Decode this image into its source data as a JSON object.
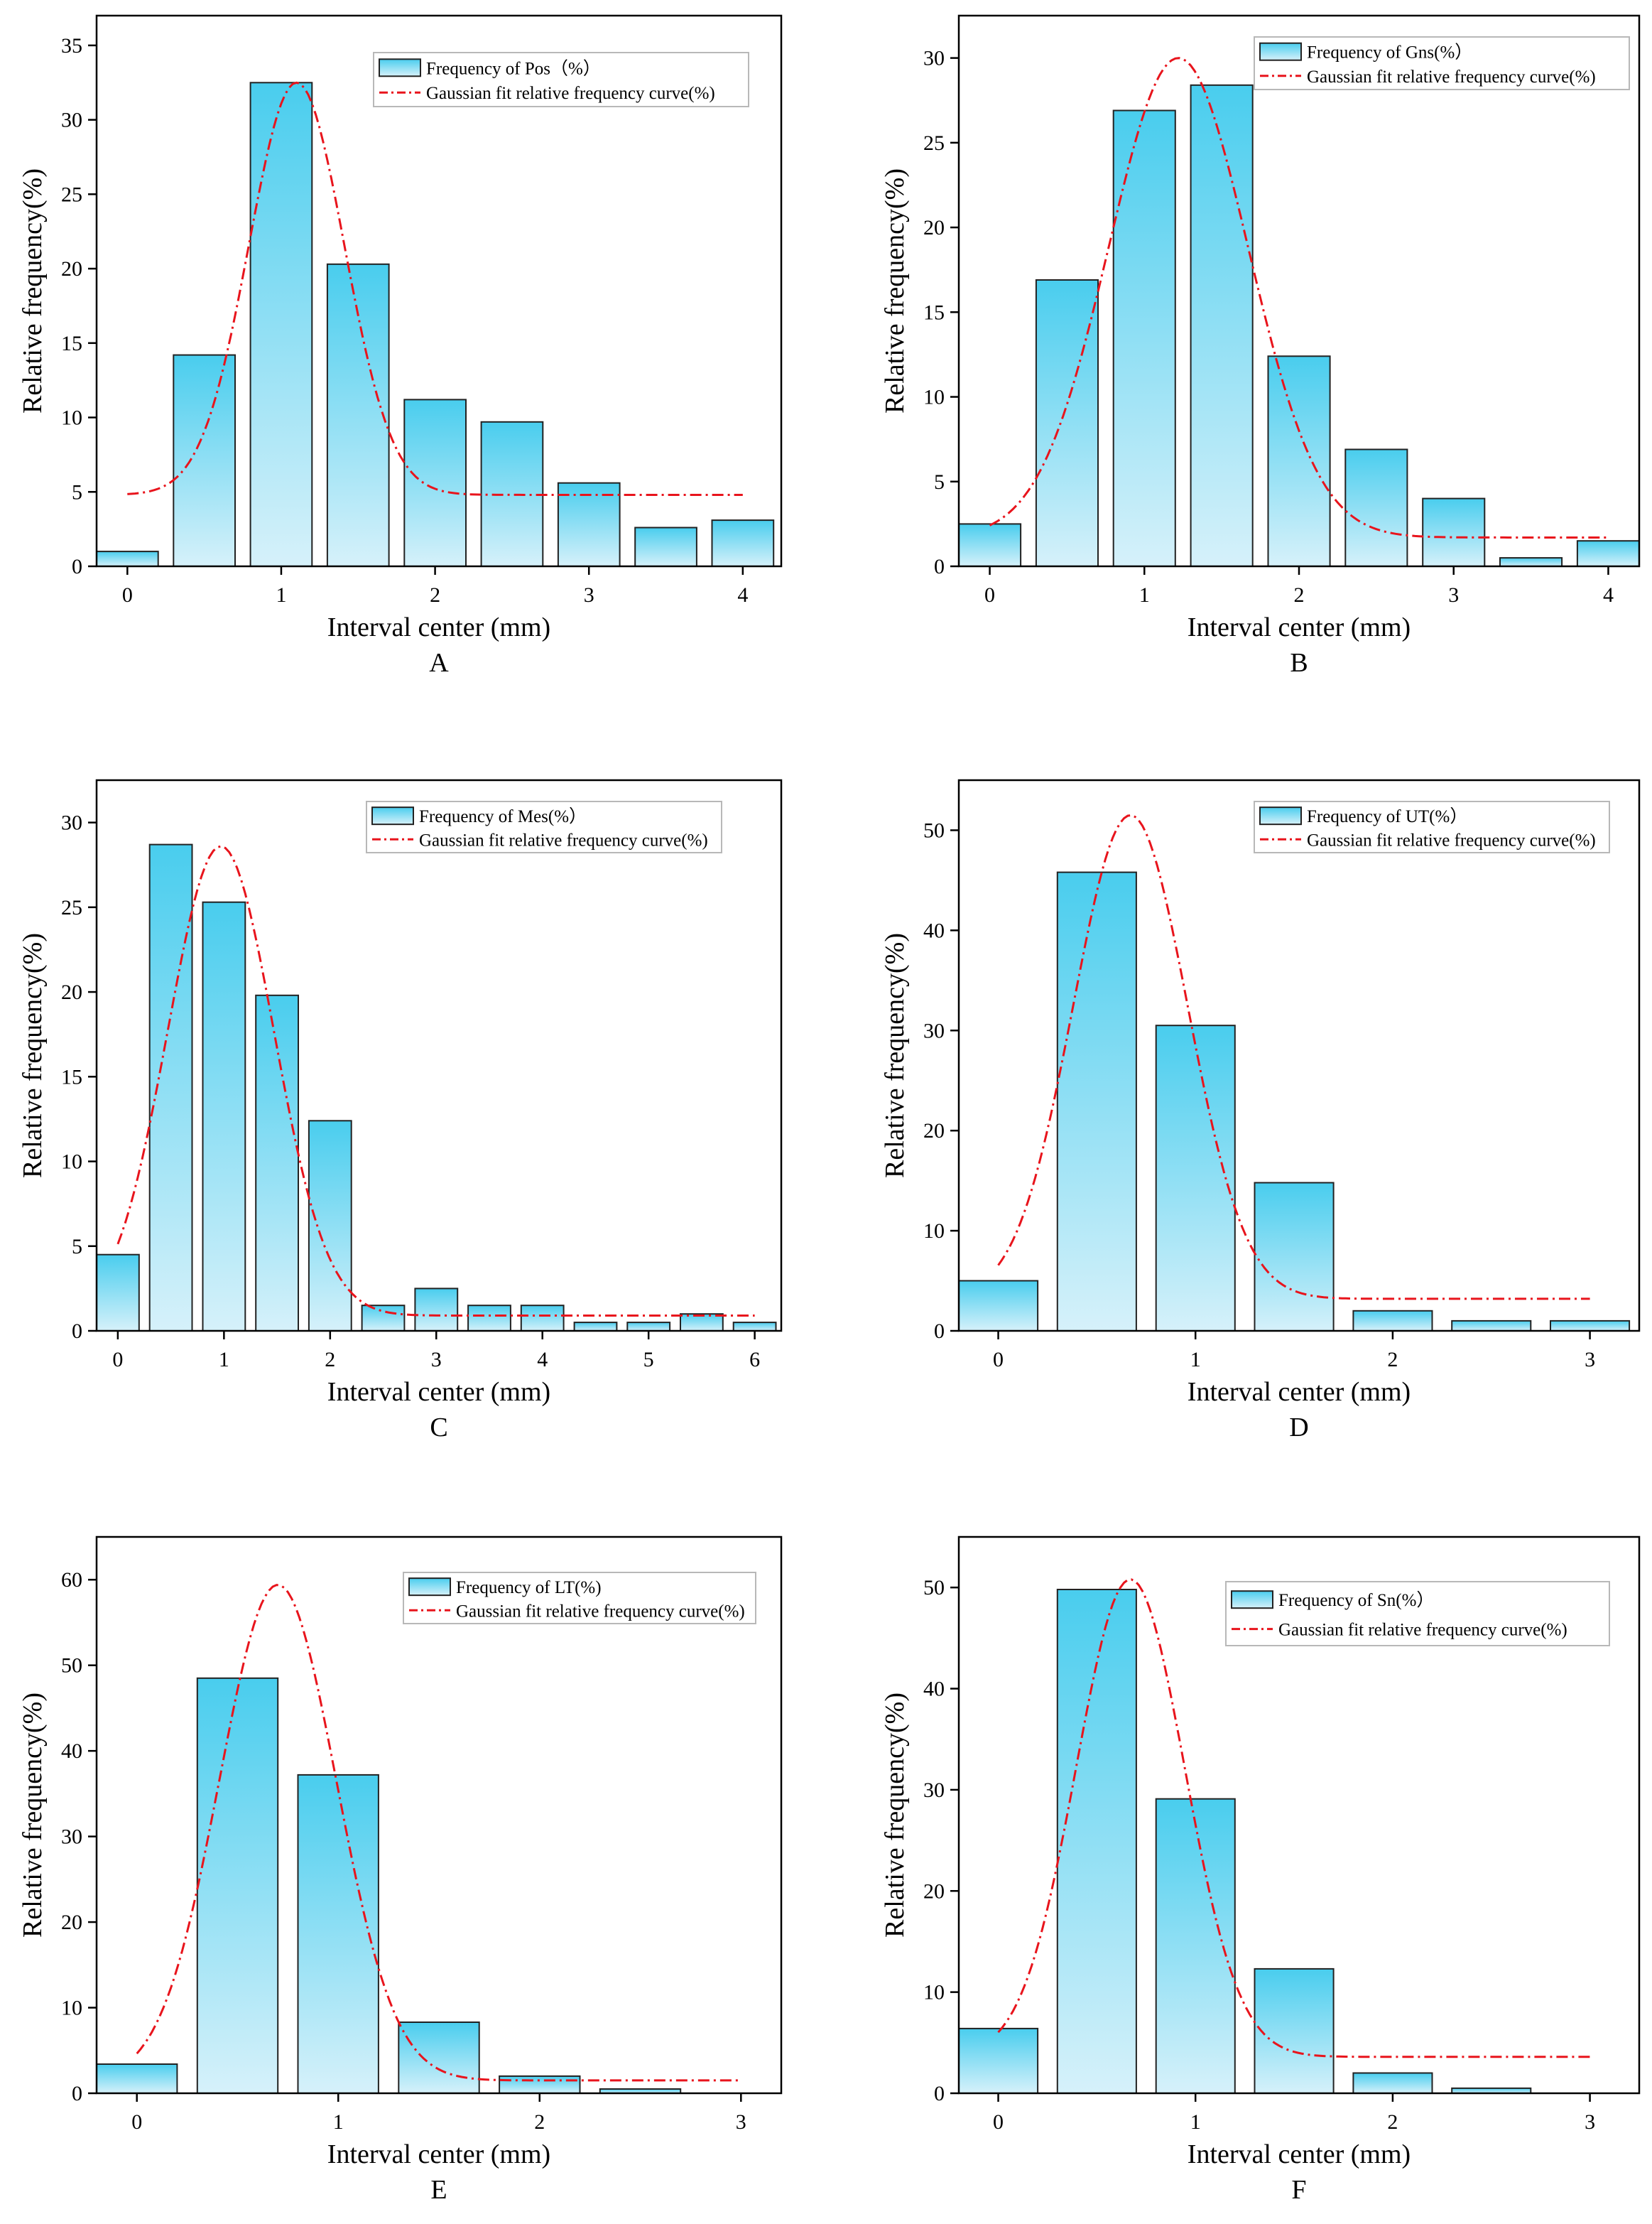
{
  "colors": {
    "bar_fill_top": "#49cdee",
    "bar_fill_bottom": "#d6f1fa",
    "bar_stroke": "#222222",
    "fit_curve": "#e8141c",
    "axis": "#000000"
  },
  "chart_data": [
    {
      "type": "bar",
      "panel_label": "A",
      "xlabel": "Interval center (mm)",
      "ylabel": "Relative frequency(%)",
      "xlim": [
        -0.2,
        4.25
      ],
      "ylim": [
        0,
        37
      ],
      "xticks": [
        0,
        1,
        2,
        3,
        4
      ],
      "yticks": [
        0,
        5,
        10,
        15,
        20,
        25,
        30,
        35
      ],
      "bar_width": 0.4,
      "x": [
        0,
        0.5,
        1.0,
        1.5,
        2.0,
        2.5,
        3.0,
        3.5,
        4.0
      ],
      "values": [
        1.0,
        14.2,
        32.5,
        20.3,
        11.2,
        9.7,
        5.6,
        2.6,
        3.1
      ],
      "legend": {
        "position": "top-right",
        "bar_label": "Frequency of Pos（%）",
        "curve_label": "Gaussian fit relative frequency curve(%)"
      },
      "fit": {
        "y0": 4.8,
        "A": 27.7,
        "xc": 1.1,
        "w": 0.62,
        "x_from": 0,
        "x_to": 4.0
      }
    },
    {
      "type": "bar",
      "panel_label": "B",
      "xlabel": "Interval center (mm)",
      "ylabel": "Relative frequency(%)",
      "xlim": [
        -0.2,
        4.2
      ],
      "ylim": [
        0,
        32.5
      ],
      "xticks": [
        0,
        1,
        2,
        3,
        4
      ],
      "yticks": [
        0,
        5,
        10,
        15,
        20,
        25,
        30
      ],
      "bar_width": 0.4,
      "x": [
        0,
        0.5,
        1.0,
        1.5,
        2.0,
        2.5,
        3.0,
        3.5,
        4.0
      ],
      "values": [
        2.5,
        16.9,
        26.9,
        28.4,
        12.4,
        6.9,
        4.0,
        0.5,
        1.5
      ],
      "legend": {
        "position": "top-right",
        "bar_label": "Frequency of Gns(%）",
        "curve_label": "Gaussian fit relative frequency curve(%)"
      },
      "fit": {
        "y0": 1.7,
        "A": 28.3,
        "xc": 1.22,
        "w": 0.9,
        "x_from": 0,
        "x_to": 4.0
      }
    },
    {
      "type": "bar",
      "panel_label": "C",
      "xlabel": "Interval center (mm)",
      "ylabel": "Relative frequency(%)",
      "xlim": [
        -0.2,
        6.25
      ],
      "ylim": [
        0,
        32.5
      ],
      "xticks": [
        0,
        1,
        2,
        3,
        4,
        5,
        6
      ],
      "yticks": [
        0,
        5,
        10,
        15,
        20,
        25,
        30
      ],
      "bar_width": 0.4,
      "x": [
        0,
        0.5,
        1.0,
        1.5,
        2.0,
        2.5,
        3.0,
        3.5,
        4.0,
        4.5,
        5.0,
        5.5,
        6.0
      ],
      "values": [
        4.5,
        28.7,
        25.3,
        19.8,
        12.4,
        1.5,
        2.5,
        1.5,
        1.5,
        0.5,
        0.5,
        1.0,
        0.5
      ],
      "legend": {
        "position": "top-right",
        "bar_label": "Frequency of Mes(%）",
        "curve_label": "Gaussian fit relative frequency curve(%)"
      },
      "fit": {
        "y0": 0.9,
        "A": 27.7,
        "xc": 0.97,
        "w": 1.0,
        "x_from": 0,
        "x_to": 6.0
      }
    },
    {
      "type": "bar",
      "panel_label": "D",
      "xlabel": "Interval center (mm)",
      "ylabel": "Relative frequency(%)",
      "xlim": [
        -0.2,
        3.25
      ],
      "ylim": [
        0,
        55
      ],
      "xticks": [
        0,
        1,
        2,
        3
      ],
      "yticks": [
        0,
        10,
        20,
        30,
        40,
        50
      ],
      "bar_width": 0.4,
      "x": [
        0,
        0.5,
        1.0,
        1.5,
        2.0,
        2.5,
        3.0
      ],
      "values": [
        5.0,
        45.8,
        30.5,
        14.8,
        2.0,
        1.0,
        1.0
      ],
      "legend": {
        "position": "top-right",
        "bar_label": "Frequency of UT(%）",
        "curve_label": "Gaussian fit relative frequency curve(%)"
      },
      "fit": {
        "y0": 3.2,
        "A": 48.3,
        "xc": 0.67,
        "w": 0.58,
        "x_from": 0,
        "x_to": 3.0
      }
    },
    {
      "type": "bar",
      "panel_label": "E",
      "xlabel": "Interval center (mm)",
      "ylabel": "Relative frequency(%)",
      "xlim": [
        -0.2,
        3.2
      ],
      "ylim": [
        0,
        65
      ],
      "xticks": [
        0,
        1,
        2,
        3
      ],
      "yticks": [
        0,
        10,
        20,
        30,
        40,
        50,
        60
      ],
      "bar_width": 0.4,
      "x": [
        0,
        0.5,
        1.0,
        1.5,
        2.0,
        2.5,
        3.0
      ],
      "values": [
        3.4,
        48.5,
        37.2,
        8.3,
        2.0,
        0.5,
        0
      ],
      "legend": {
        "position": "top-right",
        "bar_label": "Frequency of  LT(%)",
        "curve_label": "Gaussian fit relative frequency curve(%)"
      },
      "fit": {
        "y0": 1.5,
        "A": 57.9,
        "xc": 0.7,
        "w": 0.58,
        "x_from": 0,
        "x_to": 3.0
      }
    },
    {
      "type": "bar",
      "panel_label": "F",
      "xlabel": "Interval center (mm)",
      "ylabel": "Relative frequency(%)",
      "xlim": [
        -0.2,
        3.25
      ],
      "ylim": [
        0,
        55
      ],
      "xticks": [
        0,
        1,
        2,
        3
      ],
      "yticks": [
        0,
        10,
        20,
        30,
        40,
        50
      ],
      "bar_width": 0.4,
      "x": [
        0,
        0.5,
        1.0,
        1.5,
        2.0,
        2.5,
        3.0
      ],
      "values": [
        6.4,
        49.8,
        29.1,
        12.3,
        2.0,
        0.5,
        0
      ],
      "legend": {
        "position": "top-right",
        "bar_label": "Frequency of Sn(%）",
        "curve_label": "Gaussian fit relative frequency curve(%)"
      },
      "fit": {
        "y0": 3.6,
        "A": 47.2,
        "xc": 0.67,
        "w": 0.55,
        "x_from": 0,
        "x_to": 3.0
      }
    }
  ]
}
